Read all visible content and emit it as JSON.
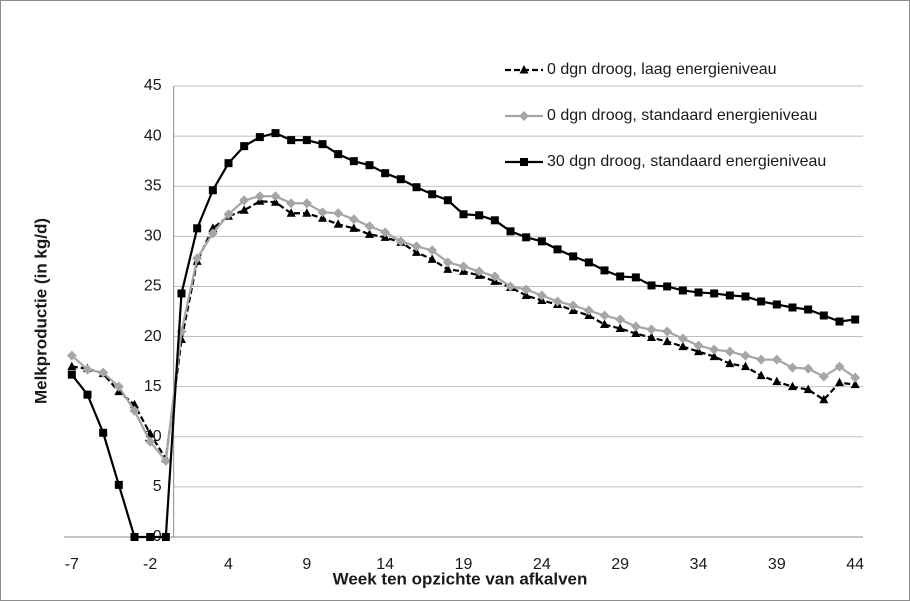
{
  "chart_data": {
    "type": "line",
    "x_label": "Week ten opzichte van afkalven",
    "y_label": "Melkproductie (in kg/d)",
    "categories": [
      -7,
      null,
      null,
      null,
      null,
      -2,
      null,
      null,
      null,
      null,
      4,
      null,
      null,
      null,
      null,
      9,
      null,
      null,
      null,
      null,
      14,
      null,
      null,
      null,
      null,
      19,
      null,
      null,
      null,
      null,
      24,
      null,
      null,
      null,
      null,
      29,
      null,
      null,
      null,
      null,
      34,
      null,
      null,
      null,
      null,
      39,
      null,
      null,
      null,
      null,
      44
    ],
    "ylim": [
      0,
      45
    ],
    "yticks": [
      0,
      5,
      10,
      15,
      20,
      25,
      30,
      35,
      40,
      45
    ],
    "grid": true,
    "legend": "top-right",
    "series": [
      {
        "name": "0 dgn droog, laag energieniveau",
        "color": "#000000",
        "dash": true,
        "marker": "triangle",
        "values": [
          17.0,
          16.8,
          16.3,
          14.5,
          13.2,
          10.3,
          7.8,
          19.7,
          27.5,
          30.8,
          32.0,
          32.6,
          33.5,
          33.4,
          32.3,
          32.3,
          31.8,
          31.2,
          30.8,
          30.2,
          29.9,
          29.4,
          28.4,
          27.7,
          26.7,
          26.5,
          26.1,
          25.5,
          24.9,
          24.1,
          23.6,
          23.2,
          22.6,
          22.1,
          21.2,
          20.8,
          20.3,
          19.9,
          19.5,
          19.0,
          18.5,
          18.0,
          17.3,
          17.0,
          16.1,
          15.5,
          15.0,
          14.7,
          13.7,
          15.4,
          15.2
        ]
      },
      {
        "name": "0 dgn droog, standaard energieniveau",
        "color": "#a6a6a6",
        "dash": false,
        "marker": "diamond",
        "values": [
          18.1,
          16.7,
          16.4,
          15.0,
          12.6,
          9.5,
          7.6,
          20.5,
          27.8,
          30.3,
          32.2,
          33.6,
          34.0,
          34.0,
          33.3,
          33.3,
          32.4,
          32.3,
          31.7,
          31.0,
          30.4,
          29.5,
          29.0,
          28.6,
          27.4,
          27.0,
          26.5,
          26.0,
          25.0,
          24.7,
          24.1,
          23.5,
          23.1,
          22.6,
          22.1,
          21.7,
          21.0,
          20.7,
          20.5,
          19.8,
          19.1,
          18.7,
          18.5,
          18.1,
          17.7,
          17.7,
          16.9,
          16.8,
          16.0,
          17.0,
          15.9
        ]
      },
      {
        "name": "30 dgn droog, standaard energieniveau",
        "color": "#000000",
        "dash": false,
        "marker": "square",
        "values": [
          16.2,
          14.2,
          10.4,
          5.2,
          0,
          0,
          0,
          24.3,
          30.8,
          34.6,
          37.3,
          39.0,
          39.9,
          40.3,
          39.6,
          39.6,
          39.2,
          38.2,
          37.5,
          37.1,
          36.3,
          35.7,
          34.9,
          34.2,
          33.6,
          32.2,
          32.1,
          31.6,
          30.5,
          29.9,
          29.5,
          28.7,
          28.0,
          27.4,
          26.6,
          26.0,
          25.9,
          25.1,
          25.0,
          24.6,
          24.4,
          24.3,
          24.1,
          24.0,
          23.5,
          23.2,
          22.9,
          22.7,
          22.1,
          21.5,
          21.7
        ]
      }
    ]
  }
}
